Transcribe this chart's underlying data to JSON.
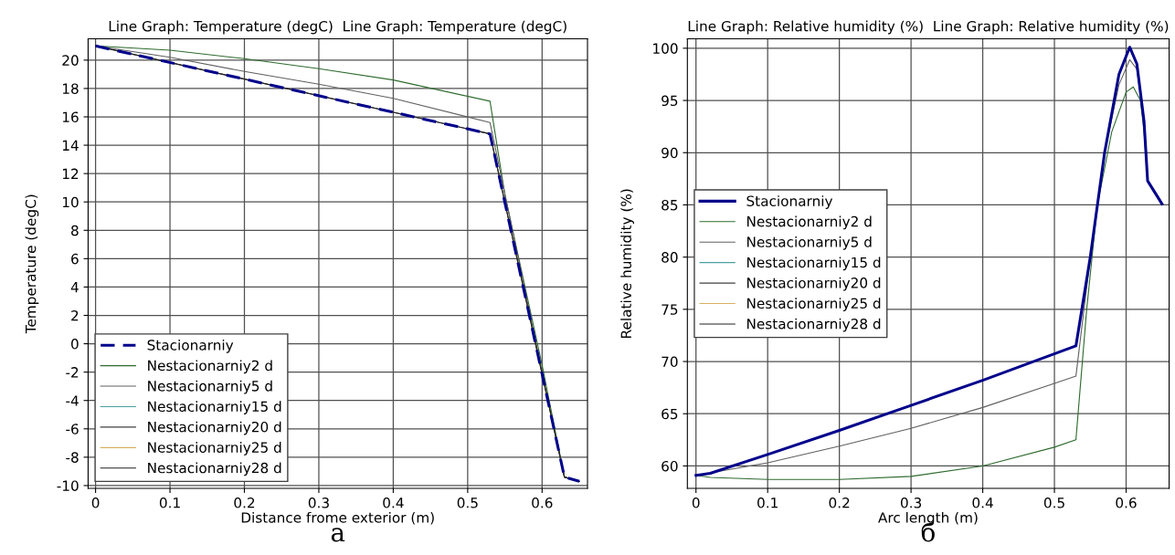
{
  "chart_data": [
    {
      "type": "line",
      "title": "Line Graph: Temperature (degC)  Line Graph: Temperature (degC)",
      "xlabel": "Distance frome exterior (m)",
      "ylabel": "Temperature (degC)",
      "annotations": [
        "а"
      ],
      "xlim": [
        -0.01,
        0.661
      ],
      "ylim": [
        -10.2,
        21.5
      ],
      "xticks": [
        0,
        0.1,
        0.2,
        0.3,
        0.4,
        0.5,
        0.6
      ],
      "yticks": [
        -10,
        -8,
        -6,
        -4,
        -2,
        0,
        2,
        4,
        6,
        8,
        10,
        12,
        14,
        16,
        18,
        20
      ],
      "grid": true,
      "legend": "bottom left",
      "series": [
        {
          "name": "Nestacionarniy2 d",
          "color": "#2e6b2e",
          "x": [
            0,
            0.1,
            0.2,
            0.3,
            0.4,
            0.53,
            0.55,
            0.6,
            0.63,
            0.65
          ],
          "values": [
            21,
            20.7,
            20.1,
            19.4,
            18.6,
            17.1,
            10.5,
            -1.5,
            -9.4,
            -9.7
          ]
        },
        {
          "name": "Nestacionarniy5 d",
          "color": "#606060",
          "x": [
            0,
            0.1,
            0.2,
            0.3,
            0.4,
            0.53,
            0.6,
            0.63,
            0.65
          ],
          "values": [
            21,
            20.2,
            19.2,
            18.3,
            17.3,
            15.6,
            -2.0,
            -9.4,
            -9.7
          ]
        },
        {
          "name": "Nestacionarniy15 d",
          "color": "#4aa0a0"
        },
        {
          "name": "Nestacionarniy20 d",
          "color": "#404040",
          "x": [
            0,
            0.53,
            0.63,
            0.65
          ],
          "values": [
            21,
            14.8,
            -9.4,
            -9.7
          ]
        },
        {
          "name": "Nestacionarniy25 d",
          "color": "#d8b060"
        },
        {
          "name": "Nestacionarniy28 d",
          "color": "#202020",
          "x": [
            0,
            0.53,
            0.63,
            0.65
          ],
          "values": [
            21,
            14.8,
            -9.4,
            -9.7
          ]
        },
        {
          "name": "Stacionarniy",
          "color": "#00008b",
          "line_style": "dashed",
          "x": [
            0,
            0.53,
            0.63,
            0.65
          ],
          "values": [
            21,
            14.8,
            -9.4,
            -9.7
          ]
        }
      ]
    },
    {
      "type": "line",
      "title": "Line Graph: Relative humidity (%)  Line Graph: Relative humidity (%)",
      "xlabel": "Arc length (m)",
      "ylabel": "Relative humidity (%)",
      "annotations": [
        "б"
      ],
      "xlim": [
        -0.012,
        0.66
      ],
      "ylim": [
        57.85,
        100.9
      ],
      "xticks": [
        0,
        0.1,
        0.2,
        0.3,
        0.4,
        0.5,
        0.6
      ],
      "yticks": [
        60,
        65,
        70,
        75,
        80,
        85,
        90,
        95,
        100
      ],
      "grid": true,
      "legend": "left",
      "series": [
        {
          "name": "Nestacionarniy2 d",
          "color": "#2e6b2e",
          "x": [
            0,
            0.02,
            0.1,
            0.2,
            0.3,
            0.4,
            0.5,
            0.53,
            0.545,
            0.56,
            0.58,
            0.6,
            0.61,
            0.62,
            0.625,
            0.63,
            0.65
          ],
          "values": [
            59.1,
            58.9,
            58.7,
            58.7,
            59.0,
            60.0,
            61.8,
            62.5,
            75,
            85,
            92,
            95.8,
            96.3,
            95,
            92,
            87.3,
            85.1
          ]
        },
        {
          "name": "Nestacionarniy5 d",
          "color": "#606060",
          "x": [
            0,
            0.1,
            0.2,
            0.3,
            0.4,
            0.5,
            0.53,
            0.55,
            0.57,
            0.59,
            0.605,
            0.615,
            0.625,
            0.63,
            0.65
          ],
          "values": [
            59.1,
            60.3,
            61.9,
            63.6,
            65.6,
            67.9,
            68.6,
            80,
            90,
            96.5,
            98.9,
            98,
            93,
            87.3,
            85.1
          ]
        },
        {
          "name": "Nestacionarniy15 d",
          "color": "#4aa0a0"
        },
        {
          "name": "Nestacionarniy20 d",
          "color": "#404040"
        },
        {
          "name": "Nestacionarniy25 d",
          "color": "#d8b060"
        },
        {
          "name": "Nestacionarniy28 d",
          "color": "#202020"
        },
        {
          "name": "Stacionarniy",
          "color": "#00008b",
          "x": [
            0,
            0.02,
            0.1,
            0.2,
            0.3,
            0.4,
            0.53,
            0.55,
            0.57,
            0.59,
            0.605,
            0.615,
            0.625,
            0.63,
            0.65
          ],
          "values": [
            59.1,
            59.3,
            61.1,
            63.4,
            65.8,
            68.2,
            71.5,
            80,
            90,
            97.5,
            100.1,
            98.5,
            93,
            87.3,
            85.1
          ]
        }
      ]
    }
  ]
}
